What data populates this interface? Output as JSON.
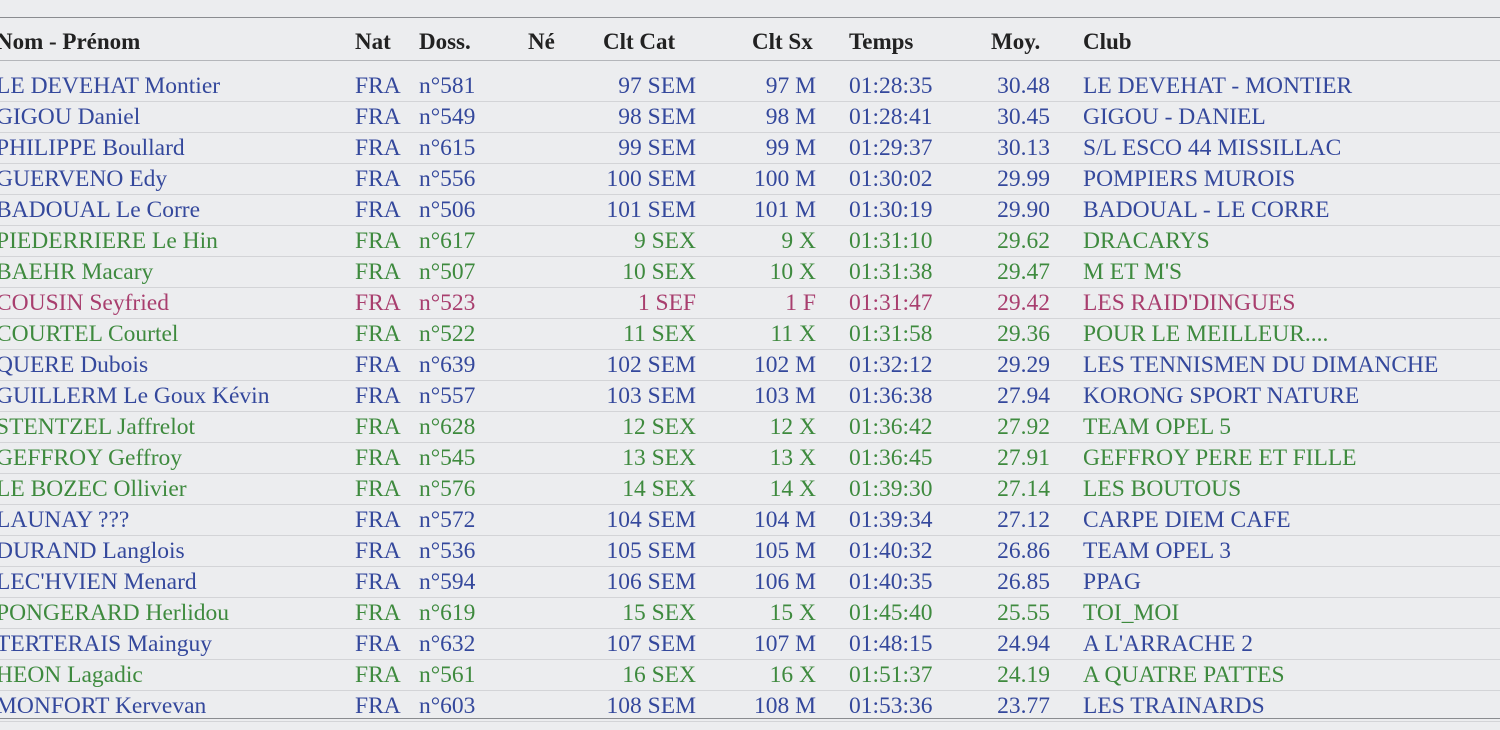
{
  "colors": {
    "male": "#34489c",
    "mixed": "#3e8a3e",
    "female": "#a83e6e",
    "header": "#222222"
  },
  "header": {
    "nom": "Nom - Prénom",
    "nat": "Nat",
    "doss": "Doss.",
    "ne": "Né",
    "clt_cat": "Clt Cat",
    "clt_sx": "Clt Sx",
    "temps": "Temps",
    "moy": "Moy.",
    "club": "Club"
  },
  "rows": [
    {
      "nom": "LE DEVEHAT Montier",
      "nat": "FRA",
      "doss": "n°581",
      "ne": "",
      "clt_cat": "97 SEM",
      "clt_sx": "97 M",
      "temps": "01:28:35",
      "moy": "30.48",
      "club": "LE DEVEHAT - MONTIER",
      "group": "male"
    },
    {
      "nom": "GIGOU Daniel",
      "nat": "FRA",
      "doss": "n°549",
      "ne": "",
      "clt_cat": "98 SEM",
      "clt_sx": "98 M",
      "temps": "01:28:41",
      "moy": "30.45",
      "club": "GIGOU - DANIEL",
      "group": "male"
    },
    {
      "nom": "PHILIPPE Boullard",
      "nat": "FRA",
      "doss": "n°615",
      "ne": "",
      "clt_cat": "99 SEM",
      "clt_sx": "99 M",
      "temps": "01:29:37",
      "moy": "30.13",
      "club": "S/L ESCO 44 MISSILLAC",
      "group": "male"
    },
    {
      "nom": "GUERVENO Edy",
      "nat": "FRA",
      "doss": "n°556",
      "ne": "",
      "clt_cat": "100 SEM",
      "clt_sx": "100 M",
      "temps": "01:30:02",
      "moy": "29.99",
      "club": "POMPIERS MUROIS",
      "group": "male"
    },
    {
      "nom": "BADOUAL Le Corre",
      "nat": "FRA",
      "doss": "n°506",
      "ne": "",
      "clt_cat": "101 SEM",
      "clt_sx": "101 M",
      "temps": "01:30:19",
      "moy": "29.90",
      "club": "BADOUAL - LE CORRE",
      "group": "male"
    },
    {
      "nom": "PIEDERRIERE Le Hin",
      "nat": "FRA",
      "doss": "n°617",
      "ne": "",
      "clt_cat": "9 SEX",
      "clt_sx": "9 X",
      "temps": "01:31:10",
      "moy": "29.62",
      "club": "DRACARYS",
      "group": "mixed"
    },
    {
      "nom": "BAEHR Macary",
      "nat": "FRA",
      "doss": "n°507",
      "ne": "",
      "clt_cat": "10 SEX",
      "clt_sx": "10 X",
      "temps": "01:31:38",
      "moy": "29.47",
      "club": "M ET M'S",
      "group": "mixed"
    },
    {
      "nom": "COUSIN Seyfried",
      "nat": "FRA",
      "doss": "n°523",
      "ne": "",
      "clt_cat": "1 SEF",
      "clt_sx": "1 F",
      "temps": "01:31:47",
      "moy": "29.42",
      "club": "LES RAID'DINGUES",
      "group": "female"
    },
    {
      "nom": "COURTEL Courtel",
      "nat": "FRA",
      "doss": "n°522",
      "ne": "",
      "clt_cat": "11 SEX",
      "clt_sx": "11 X",
      "temps": "01:31:58",
      "moy": "29.36",
      "club": "POUR LE MEILLEUR....",
      "group": "mixed"
    },
    {
      "nom": "QUERE Dubois",
      "nat": "FRA",
      "doss": "n°639",
      "ne": "",
      "clt_cat": "102 SEM",
      "clt_sx": "102 M",
      "temps": "01:32:12",
      "moy": "29.29",
      "club": "LES TENNISMEN DU DIMANCHE",
      "group": "male"
    },
    {
      "nom": "GUILLERM Le Goux Kévin",
      "nat": "FRA",
      "doss": "n°557",
      "ne": "",
      "clt_cat": "103 SEM",
      "clt_sx": "103 M",
      "temps": "01:36:38",
      "moy": "27.94",
      "club": "KORONG SPORT NATURE",
      "group": "male"
    },
    {
      "nom": "STENTZEL Jaffrelot",
      "nat": "FRA",
      "doss": "n°628",
      "ne": "",
      "clt_cat": "12 SEX",
      "clt_sx": "12 X",
      "temps": "01:36:42",
      "moy": "27.92",
      "club": "TEAM OPEL 5",
      "group": "mixed"
    },
    {
      "nom": "GEFFROY Geffroy",
      "nat": "FRA",
      "doss": "n°545",
      "ne": "",
      "clt_cat": "13 SEX",
      "clt_sx": "13 X",
      "temps": "01:36:45",
      "moy": "27.91",
      "club": "GEFFROY PERE ET FILLE",
      "group": "mixed"
    },
    {
      "nom": "LE BOZEC Ollivier",
      "nat": "FRA",
      "doss": "n°576",
      "ne": "",
      "clt_cat": "14 SEX",
      "clt_sx": "14 X",
      "temps": "01:39:30",
      "moy": "27.14",
      "club": "LES BOUTOUS",
      "group": "mixed"
    },
    {
      "nom": "LAUNAY ???",
      "nat": "FRA",
      "doss": "n°572",
      "ne": "",
      "clt_cat": "104 SEM",
      "clt_sx": "104 M",
      "temps": "01:39:34",
      "moy": "27.12",
      "club": "CARPE DIEM CAFE",
      "group": "male"
    },
    {
      "nom": "DURAND Langlois",
      "nat": "FRA",
      "doss": "n°536",
      "ne": "",
      "clt_cat": "105 SEM",
      "clt_sx": "105 M",
      "temps": "01:40:32",
      "moy": "26.86",
      "club": "TEAM OPEL 3",
      "group": "male"
    },
    {
      "nom": "LEC'HVIEN Menard",
      "nat": "FRA",
      "doss": "n°594",
      "ne": "",
      "clt_cat": "106 SEM",
      "clt_sx": "106 M",
      "temps": "01:40:35",
      "moy": "26.85",
      "club": "PPAG",
      "group": "male"
    },
    {
      "nom": "PONGERARD Herlidou",
      "nat": "FRA",
      "doss": "n°619",
      "ne": "",
      "clt_cat": "15 SEX",
      "clt_sx": "15 X",
      "temps": "01:45:40",
      "moy": "25.55",
      "club": "TOI_MOI",
      "group": "mixed"
    },
    {
      "nom": "TERTERAIS Mainguy",
      "nat": "FRA",
      "doss": "n°632",
      "ne": "",
      "clt_cat": "107 SEM",
      "clt_sx": "107 M",
      "temps": "01:48:15",
      "moy": "24.94",
      "club": "A L'ARRACHE 2",
      "group": "male"
    },
    {
      "nom": "HEON Lagadic",
      "nat": "FRA",
      "doss": "n°561",
      "ne": "",
      "clt_cat": "16 SEX",
      "clt_sx": "16 X",
      "temps": "01:51:37",
      "moy": "24.19",
      "club": "A QUATRE PATTES",
      "group": "mixed"
    },
    {
      "nom": "MONFORT Kervevan",
      "nat": "FRA",
      "doss": "n°603",
      "ne": "",
      "clt_cat": "108 SEM",
      "clt_sx": "108 M",
      "temps": "01:53:36",
      "moy": "23.77",
      "club": "LES TRAINARDS",
      "group": "male"
    }
  ]
}
